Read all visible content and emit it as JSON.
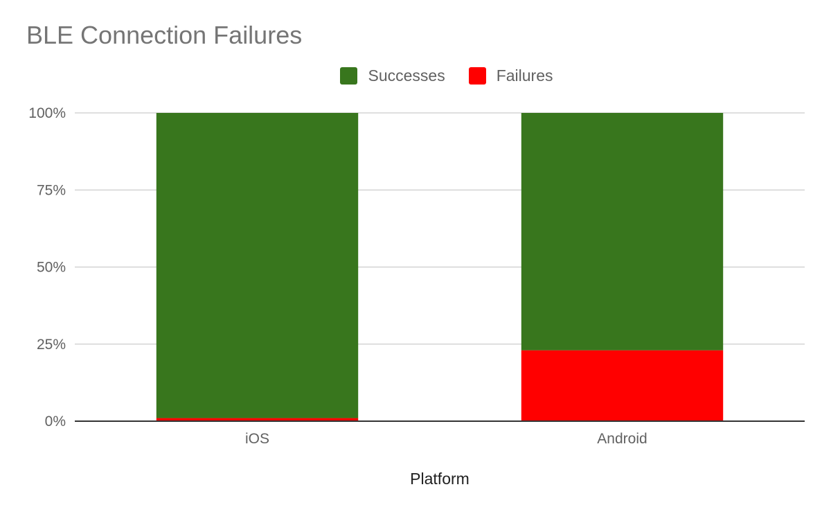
{
  "chart_data": {
    "type": "bar",
    "stacked": true,
    "title": "BLE Connection Failures",
    "xlabel": "Platform",
    "ylabel": "",
    "categories": [
      "iOS",
      "Android"
    ],
    "series": [
      {
        "name": "Failures",
        "color": "#ff0000",
        "values": [
          1,
          23
        ]
      },
      {
        "name": "Successes",
        "color": "#38761d",
        "values": [
          99,
          77
        ]
      }
    ],
    "legend": [
      {
        "name": "Successes",
        "color": "#38761d"
      },
      {
        "name": "Failures",
        "color": "#ff0000"
      }
    ],
    "ylim": [
      0,
      100
    ],
    "yticks": [
      "0%",
      "25%",
      "50%",
      "75%",
      "100%"
    ],
    "ytick_values": [
      0,
      25,
      50,
      75,
      100
    ],
    "grid": true,
    "legend_position": "top"
  }
}
